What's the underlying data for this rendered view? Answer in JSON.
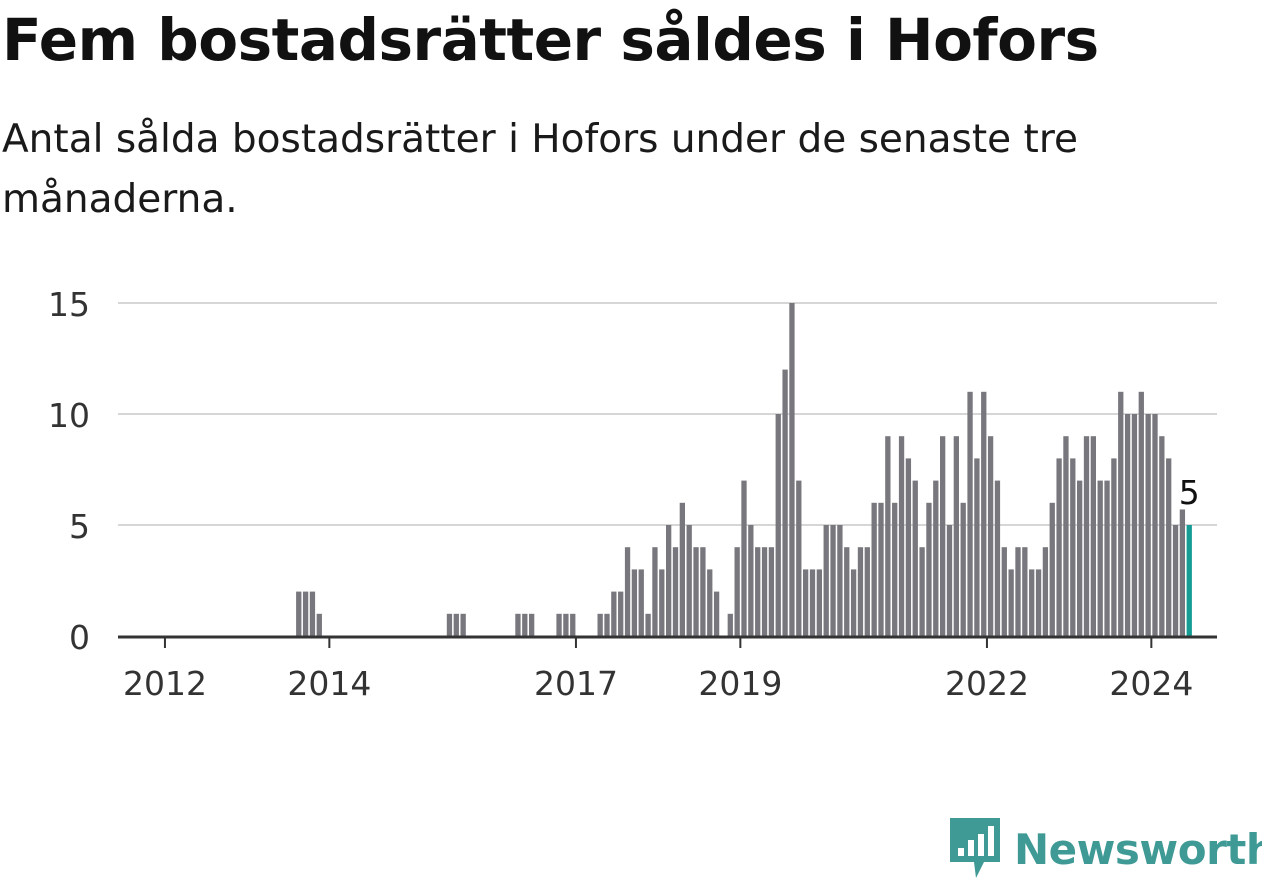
{
  "header": {
    "title": "Fem bostadsrätter såldes i Hofors",
    "subtitle": "Antal sålda bostadsrätter i Hofors under de senaste tre månaderna."
  },
  "brand": {
    "name": "Newsworthy",
    "icon": "newsworthy-logo-icon",
    "color": "#3f9a96"
  },
  "chart_data": {
    "type": "bar",
    "x_unit": "month",
    "x_start": "2011-06",
    "values": [
      0,
      0,
      0,
      0,
      0,
      0,
      0,
      0,
      0,
      0,
      0,
      0,
      0,
      0,
      0,
      0,
      0,
      0,
      0,
      0,
      0,
      0,
      0,
      0,
      0,
      0,
      2,
      2,
      2,
      1,
      0,
      0,
      0,
      0,
      0,
      0,
      0,
      0,
      0,
      0,
      0,
      0,
      0,
      0,
      0,
      0,
      0,
      0,
      1,
      1,
      1,
      0,
      0,
      0,
      0,
      0,
      0,
      0,
      1,
      1,
      1,
      0,
      0,
      0,
      1,
      1,
      1,
      0,
      0,
      0,
      1,
      1,
      2,
      2,
      4,
      3,
      3,
      1,
      4,
      3,
      5,
      4,
      6,
      5,
      4,
      4,
      3,
      2,
      0,
      1,
      4,
      7,
      5,
      4,
      4,
      4,
      10,
      12,
      15,
      7,
      3,
      3,
      3,
      5,
      5,
      5,
      4,
      3,
      4,
      4,
      6,
      6,
      9,
      6,
      9,
      8,
      7,
      4,
      6,
      7,
      9,
      5,
      9,
      6,
      11,
      8,
      11,
      9,
      7,
      4,
      3,
      4,
      4,
      3,
      3,
      4,
      6,
      8,
      9,
      8,
      7,
      9,
      9,
      7,
      7,
      8,
      11,
      10,
      10,
      11,
      10,
      10,
      9,
      8,
      5,
      5.7,
      5
    ],
    "highlight_last": true,
    "last_label": "5",
    "bar_color": "#78777d",
    "highlight_color": "#159d95",
    "ylim": [
      0,
      15
    ],
    "yticks": [
      0,
      5,
      10,
      15
    ],
    "xticks": [
      {
        "label": "2012",
        "date": "2012-01"
      },
      {
        "label": "2014",
        "date": "2014-01"
      },
      {
        "label": "2017",
        "date": "2017-01"
      },
      {
        "label": "2019",
        "date": "2019-01"
      },
      {
        "label": "2022",
        "date": "2022-01"
      },
      {
        "label": "2024",
        "date": "2024-01"
      }
    ],
    "grid": true,
    "title": "",
    "xlabel": "",
    "ylabel": ""
  }
}
